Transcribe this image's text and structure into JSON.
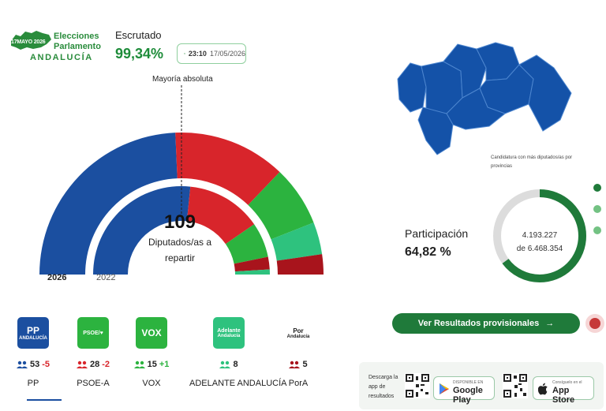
{
  "header": {
    "logo": {
      "date": "17MAYO 2026",
      "line1": "Elecciones",
      "line2": "Parlamento",
      "line3": "ANDALUCÍA"
    },
    "escrutado_label": "Escrutado",
    "escrutado_value": "99,34%",
    "time": "23:10",
    "date": "17/05/2026"
  },
  "hemicycle": {
    "majority_label": "Mayoría absoluta",
    "total": "109",
    "total_caption": "Diputados/as a repartir",
    "year_current": "2026",
    "year_previous": "2022",
    "current": [
      {
        "party": "PP",
        "seats": 53,
        "color": "#1b4fa0"
      },
      {
        "party": "PSOE-A",
        "seats": 28,
        "color": "#d8252b"
      },
      {
        "party": "VOX",
        "seats": 15,
        "color": "#2cb33f"
      },
      {
        "party": "ADELANTE ANDALUCÍA",
        "seats": 8,
        "color": "#2ec27e"
      },
      {
        "party": "PorA",
        "seats": 5,
        "color": "#a8141c"
      }
    ],
    "previous": [
      {
        "party": "PP",
        "seats": 58,
        "color": "#1b4fa0"
      },
      {
        "party": "PSOE-A",
        "seats": 30,
        "color": "#d8252b"
      },
      {
        "party": "VOX",
        "seats": 14,
        "color": "#2cb33f"
      },
      {
        "party": "PorA",
        "seats": 5,
        "color": "#a8141c"
      },
      {
        "party": "ADELANTE ANDALUCÍA",
        "seats": 2,
        "color": "#2ec27e"
      }
    ]
  },
  "parties": [
    {
      "logo_text": "PP",
      "logo_sub": "ANDALUCÍA",
      "seats": "53",
      "delta": "-5",
      "delta_color": "#d8252b",
      "name": "PP",
      "color": "#1b4fa0",
      "icon_color": "#1b4fa0"
    },
    {
      "logo_text": "PSOE/♥",
      "logo_sub": "",
      "seats": "28",
      "delta": "-2",
      "delta_color": "#d8252b",
      "name": "PSOE-A",
      "color": "#2cb33f",
      "icon_color": "#d8252b"
    },
    {
      "logo_text": "VOX",
      "logo_sub": "",
      "seats": "15",
      "delta": "+1",
      "delta_color": "#2cb33f",
      "name": "VOX",
      "color": "#2cb33f",
      "icon_color": "#2cb33f"
    },
    {
      "logo_text": "Adelante",
      "logo_sub": "Andalucía",
      "seats": "8",
      "delta": "",
      "delta_color": "#2cb33f",
      "name": "ADELANTE ANDALUCÍA",
      "color": "#2ec27e",
      "icon_color": "#2ec27e"
    },
    {
      "logo_text": "Por",
      "logo_sub": "Andalucía",
      "seats": "5",
      "delta": "",
      "delta_color": "#a8141c",
      "name": "PorA",
      "color": "#ffffff",
      "icon_color": "#a8141c"
    }
  ],
  "map": {
    "color": "#1452a8",
    "note": "Candidatura con más diputados/as por provincias"
  },
  "participation": {
    "label": "Participación",
    "value": "64,82 %",
    "fraction": 0.6482,
    "voters": "4.193.227",
    "census": "de 6.468.354"
  },
  "results_button": {
    "label": "Ver Resultados provisionales",
    "arrow": "→"
  },
  "app_promo": {
    "text": "Descarga la app de resultados",
    "google_small": "DISPONIBLE EN",
    "google_big": "Google Play",
    "apple_small": "Consíguelo en el",
    "apple_big": "App Store"
  },
  "legend_dots": [
    "#1f7a3a",
    "#73c283",
    "#73c283"
  ]
}
